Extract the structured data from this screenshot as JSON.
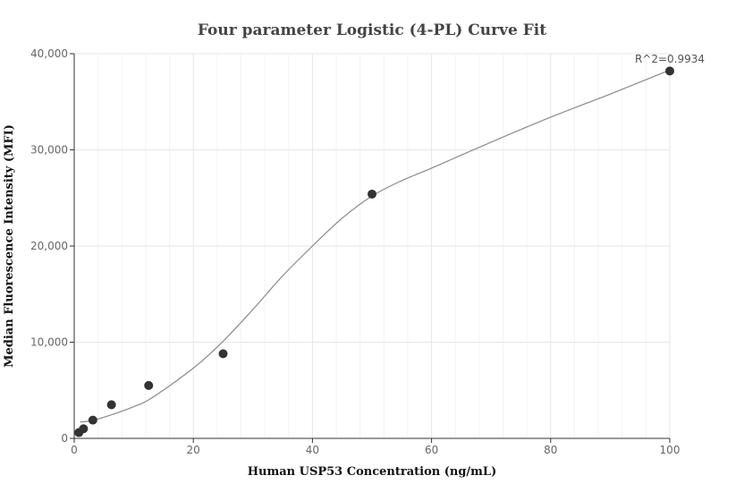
{
  "chart_data": {
    "type": "scatter",
    "title": "Four parameter Logistic (4-PL) Curve Fit",
    "xlabel": "Human USP53 Concentration (ng/mL)",
    "ylabel": "Median Fluorescence Intensity (MFI)",
    "xlim": [
      0,
      100
    ],
    "ylim": [
      0,
      40000
    ],
    "x_ticks": [
      0,
      20,
      40,
      60,
      80,
      100
    ],
    "x_tick_labels": [
      "0",
      "20",
      "40",
      "60",
      "80",
      "100"
    ],
    "y_ticks": [
      0,
      10000,
      20000,
      30000,
      40000
    ],
    "y_tick_labels": [
      "0",
      "10,000",
      "20,000",
      "30,000",
      "40,000"
    ],
    "grid": true,
    "annotation": "R^2=0.9934",
    "colors": {
      "points": "#333333",
      "curve": "#8a8a8a",
      "grid": "#e6e6ee"
    },
    "series": [
      {
        "kind": "points",
        "x": [
          0.78,
          1.56,
          3.13,
          6.25,
          12.5,
          25,
          50,
          100
        ],
        "y": [
          600,
          1000,
          1900,
          3500,
          5500,
          8800,
          25400,
          38200
        ]
      },
      {
        "kind": "fit-curve",
        "x": [
          1,
          3,
          6,
          10,
          13,
          20,
          25,
          30,
          35,
          40,
          45,
          50,
          55,
          60,
          70,
          80,
          90,
          100
        ],
        "y": [
          1700,
          1850,
          2400,
          3300,
          4200,
          7300,
          10100,
          13400,
          16900,
          20000,
          22900,
          25200,
          26800,
          28100,
          30800,
          33400,
          35800,
          38300
        ]
      }
    ]
  }
}
